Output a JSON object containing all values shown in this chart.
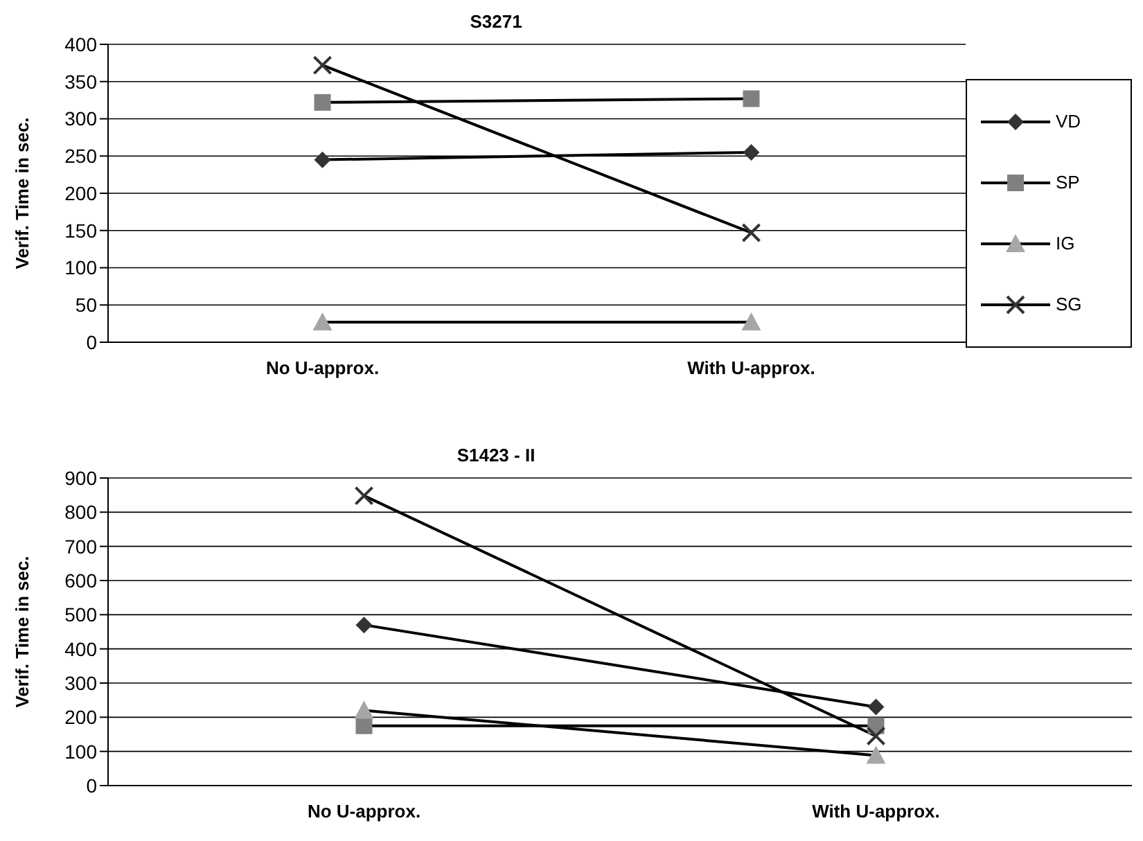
{
  "chart_data": [
    {
      "type": "line",
      "title": "S3271",
      "ylabel": "Verif. Time in sec.",
      "categories": [
        "No U-approx.",
        "With U-approx."
      ],
      "ylim": [
        0,
        400
      ],
      "yticks": [
        0,
        50,
        100,
        150,
        200,
        250,
        300,
        350,
        400
      ],
      "grid": "y",
      "legend": "right",
      "series": [
        {
          "name": "VD",
          "color": "#333333",
          "marker": "diamond",
          "values": [
            245,
            255
          ]
        },
        {
          "name": "SP",
          "color": "#808080",
          "marker": "square",
          "values": [
            322,
            327
          ]
        },
        {
          "name": "IG",
          "color": "#a6a6a6",
          "marker": "triangle",
          "values": [
            27,
            27
          ]
        },
        {
          "name": "SG",
          "color": "#333333",
          "marker": "cross",
          "values": [
            372,
            147
          ]
        }
      ]
    },
    {
      "type": "line",
      "title": "S1423 - II",
      "ylabel": "Verif. Time in sec.",
      "categories": [
        "No U-approx.",
        "With U-approx."
      ],
      "ylim": [
        0,
        900
      ],
      "yticks": [
        0,
        100,
        200,
        300,
        400,
        500,
        600,
        700,
        800,
        900
      ],
      "grid": "y",
      "series": [
        {
          "color": "#333333",
          "marker": "diamond",
          "values": [
            470,
            230
          ]
        },
        {
          "color": "#808080",
          "marker": "square",
          "values": [
            175,
            175
          ]
        },
        {
          "color": "#a6a6a6",
          "marker": "triangle",
          "values": [
            220,
            88
          ]
        },
        {
          "color": "#333333",
          "marker": "cross",
          "values": [
            848,
            145
          ]
        }
      ]
    }
  ]
}
